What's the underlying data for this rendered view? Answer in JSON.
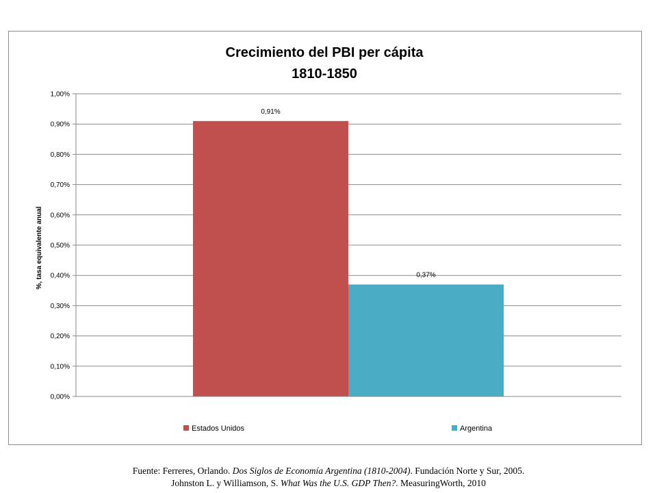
{
  "chart_data": {
    "type": "bar",
    "title": "Crecimiento del PBI per cápita",
    "subtitle": "1810-1850",
    "ylabel": "%, tasa equivalente anual",
    "xlabel": "",
    "ylim": [
      0,
      1.0
    ],
    "y_ticks": [
      "0,00%",
      "0,10%",
      "0,20%",
      "0,30%",
      "0,40%",
      "0,50%",
      "0,60%",
      "0,70%",
      "0,80%",
      "0,90%",
      "1,00%"
    ],
    "grid": true,
    "legend_position": "bottom",
    "series": [
      {
        "name": "Estados Unidos",
        "value": 0.91,
        "label": "0,91%",
        "color": "#C0504D"
      },
      {
        "name": "Argentina",
        "value": 0.37,
        "label": "0,37%",
        "color": "#4BACC6"
      }
    ]
  },
  "source": {
    "line1_prefix": "Fuente: Ferreres, Orlando. ",
    "line1_italic": "Dos Siglos de Economía Argentina (1810-2004)",
    "line1_suffix": ". Fundación Norte y Sur, 2005.",
    "line2_prefix": "Johnston L. y Williamson,  S. ",
    "line2_italic": "What Was the U.S. GDP Then?",
    "line2_suffix": ". MeasuringWorth, 2010"
  }
}
